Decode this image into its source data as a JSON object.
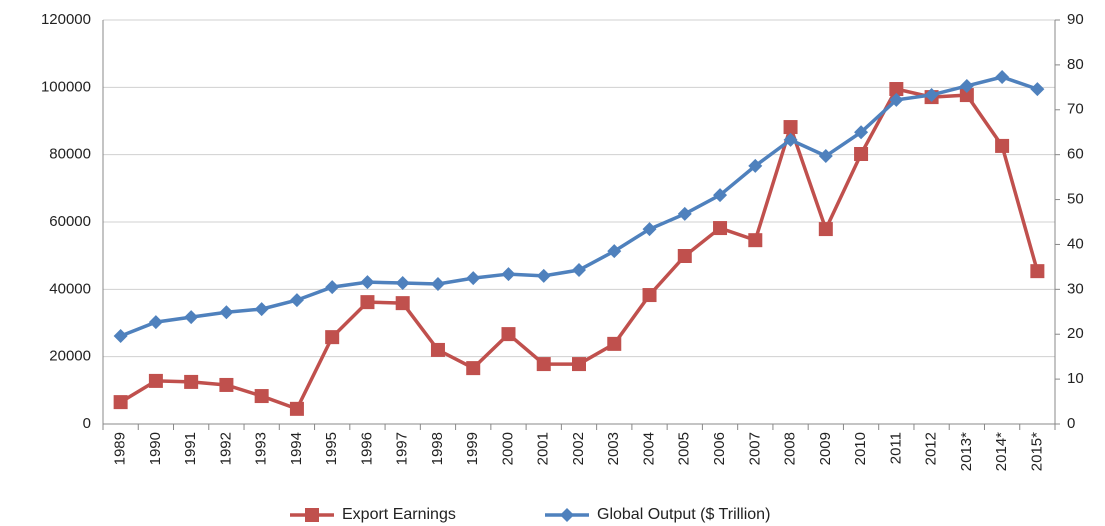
{
  "chart_data": {
    "type": "line",
    "categories": [
      "1989",
      "1990",
      "1991",
      "1992",
      "1993",
      "1994",
      "1995",
      "1996",
      "1997",
      "1998",
      "1999",
      "2000",
      "2001",
      "2002",
      "2003",
      "2004",
      "2005",
      "2006",
      "2007",
      "2008",
      "2009",
      "2010",
      "2011",
      "2012",
      "2013*",
      "2014*",
      "2015*"
    ],
    "series": [
      {
        "name": "Export Earnings",
        "color": "#c0504d",
        "marker": "square",
        "values": [
          6500,
          12800,
          12500,
          11600,
          8300,
          4500,
          25800,
          36200,
          35900,
          22000,
          16600,
          26700,
          17800,
          17800,
          23800,
          38300,
          49900,
          58200,
          54600,
          88200,
          57900,
          80200,
          99500,
          97100,
          97700,
          82600,
          45400
        ]
      },
      {
        "name": "Global Output ($ Trillion)",
        "color": "#4f81bd",
        "marker": "diamond",
        "axis": "y2",
        "values": [
          19.6,
          22.7,
          23.8,
          24.9,
          25.6,
          27.6,
          30.5,
          31.6,
          31.4,
          31.2,
          32.5,
          33.4,
          33.0,
          34.3,
          38.5,
          43.4,
          46.8,
          51.0,
          57.5,
          63.3,
          59.7,
          65.0,
          72.2,
          73.3,
          75.3,
          77.3,
          74.6
        ]
      }
    ],
    "ylim": [
      0,
      120000
    ],
    "yticks": [
      0,
      20000,
      40000,
      60000,
      80000,
      100000,
      120000
    ],
    "y2lim": [
      0,
      90
    ],
    "y2ticks": [
      0,
      10,
      20,
      30,
      40,
      50,
      60,
      70,
      80,
      90
    ],
    "grid": true,
    "legend": "bottom"
  }
}
